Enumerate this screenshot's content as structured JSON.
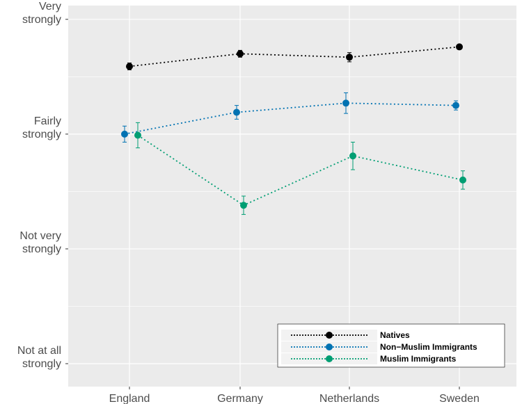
{
  "chart_data": {
    "type": "line",
    "categories": [
      "England",
      "Germany",
      "Netherlands",
      "Sweden"
    ],
    "y_levels": [
      {
        "value": 1,
        "label": [
          "Not at all",
          "strongly"
        ]
      },
      {
        "value": 2,
        "label": [
          "Not very",
          "strongly"
        ]
      },
      {
        "value": 3,
        "label": [
          "Fairly",
          "strongly"
        ]
      },
      {
        "value": 4,
        "label": [
          "Very",
          "strongly"
        ]
      }
    ],
    "ylim": [
      0.8,
      4.12
    ],
    "grid": true,
    "legend_position": "bottom-right",
    "series": [
      {
        "name": "Natives",
        "color": "#000000",
        "values": [
          3.59,
          3.7,
          3.67,
          3.76
        ],
        "errors": [
          0.03,
          0.03,
          0.04,
          0.02
        ]
      },
      {
        "name": "Non−Muslim Immigrants",
        "color": "#0072B2",
        "values": [
          3.0,
          3.19,
          3.27,
          3.25
        ],
        "errors": [
          0.07,
          0.06,
          0.09,
          0.04
        ]
      },
      {
        "name": "Muslim Immigrants",
        "color": "#009E73",
        "values": [
          2.99,
          2.38,
          2.81,
          2.6
        ],
        "errors": [
          0.11,
          0.08,
          0.12,
          0.08
        ]
      }
    ]
  }
}
